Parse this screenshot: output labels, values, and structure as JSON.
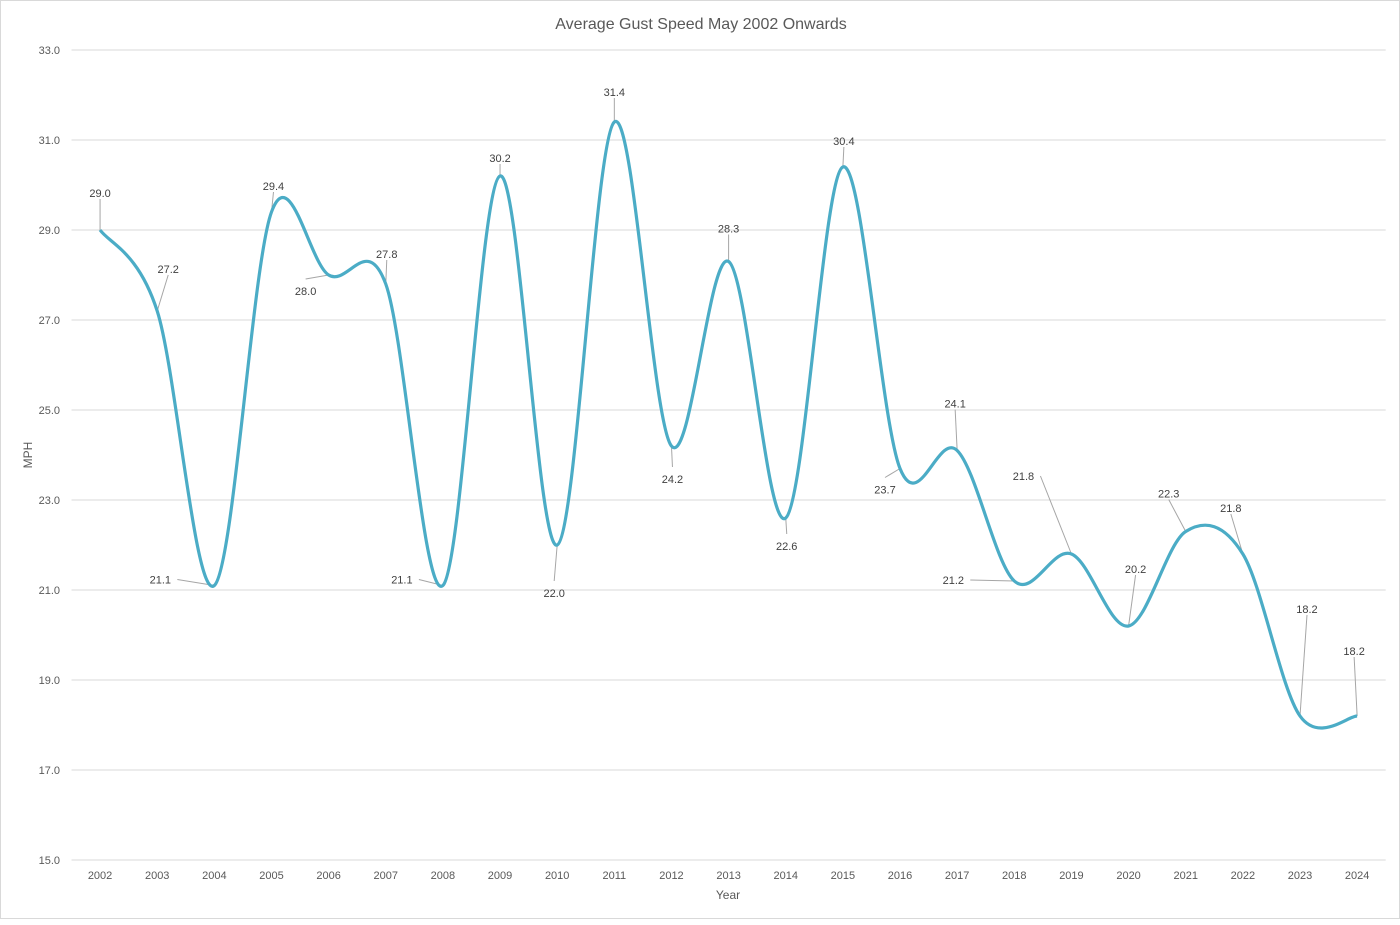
{
  "chart_data": {
    "type": "line",
    "title": "Average Gust Speed May 2002 Onwards",
    "xlabel": "Year",
    "ylabel": "MPH",
    "ylim": [
      15,
      33
    ],
    "yticks": [
      "15.0",
      "17.0",
      "19.0",
      "21.0",
      "23.0",
      "25.0",
      "27.0",
      "29.0",
      "31.0",
      "33.0"
    ],
    "grid": true,
    "smoothed": true,
    "categories": [
      "2002",
      "2003",
      "2004",
      "2005",
      "2006",
      "2007",
      "2008",
      "2009",
      "2010",
      "2011",
      "2012",
      "2013",
      "2014",
      "2015",
      "2016",
      "2017",
      "2018",
      "2019",
      "2020",
      "2021",
      "2022",
      "2023",
      "2024"
    ],
    "series": [
      {
        "name": "Average Gust Speed",
        "color": "#4bacc6",
        "values": [
          29.0,
          27.2,
          21.1,
          29.4,
          28.0,
          27.8,
          21.1,
          30.2,
          22.0,
          31.4,
          24.2,
          28.3,
          22.6,
          30.4,
          23.7,
          24.1,
          21.2,
          21.8,
          20.2,
          22.3,
          21.8,
          18.2,
          18.2
        ],
        "labels": [
          "29.0",
          "27.2",
          "21.1",
          "29.4",
          "28.0",
          "27.8",
          "21.1",
          "30.2",
          "22.0",
          "31.4",
          "24.2",
          "28.3",
          "22.6",
          "30.4",
          "23.7",
          "24.1",
          "21.2",
          "21.8",
          "20.2",
          "22.3",
          "21.8",
          "18.2",
          "18.2"
        ]
      }
    ]
  }
}
